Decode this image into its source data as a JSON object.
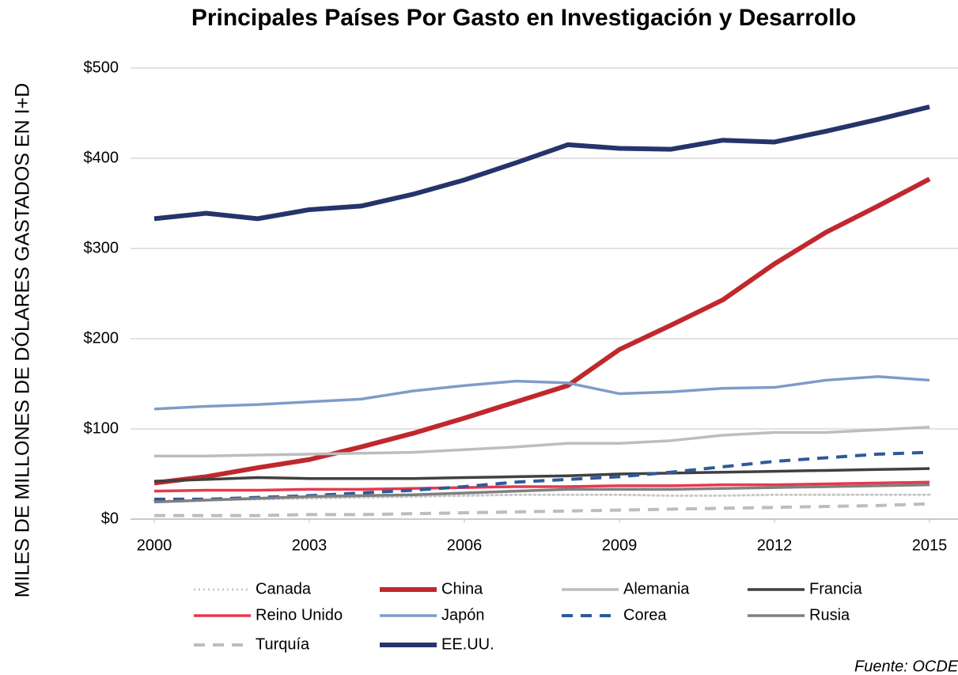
{
  "chart_data": {
    "type": "line",
    "title": "Principales Países Por Gasto en Investigación y Desarrollo",
    "y_label": "MILES DE MILLONES DE DÓLARES GASTADOS EN I+D",
    "source": "Fuente: OCDE",
    "x": [
      2000,
      2001,
      2002,
      2003,
      2004,
      2005,
      2006,
      2007,
      2008,
      2009,
      2010,
      2011,
      2012,
      2013,
      2014,
      2015
    ],
    "xlim": [
      2000,
      2015
    ],
    "xticks": [
      2000,
      2003,
      2006,
      2009,
      2012,
      2015
    ],
    "ylim": [
      0,
      500
    ],
    "yticks": [
      {
        "value": 0,
        "label": "$0"
      },
      {
        "value": 100,
        "label": "$100"
      },
      {
        "value": 200,
        "label": "$200"
      },
      {
        "value": 300,
        "label": "$300"
      },
      {
        "value": 400,
        "label": "$400"
      },
      {
        "value": 500,
        "label": "$500"
      }
    ],
    "grid": true,
    "legend": "bottom",
    "series": [
      {
        "name": "Canada",
        "color": "#c8c8c8",
        "style": "dotted",
        "values": [
          20,
          21,
          22,
          23,
          24,
          25,
          26,
          27,
          27,
          27,
          26,
          26,
          27,
          27,
          27,
          27
        ]
      },
      {
        "name": "China",
        "color": "#c0282d",
        "style": "solid-thick",
        "values": [
          40,
          47,
          57,
          66,
          80,
          95,
          112,
          130,
          148,
          188,
          215,
          243,
          283,
          318,
          347,
          377
        ]
      },
      {
        "name": "Alemania",
        "color": "#bdbdbd",
        "style": "solid",
        "values": [
          70,
          70,
          71,
          72,
          73,
          74,
          77,
          80,
          84,
          84,
          87,
          93,
          96,
          96,
          99,
          102
        ]
      },
      {
        "name": "Francia",
        "color": "#404040",
        "style": "solid",
        "values": [
          42,
          44,
          46,
          45,
          45,
          45,
          46,
          47,
          48,
          50,
          51,
          52,
          53,
          54,
          55,
          56
        ]
      },
      {
        "name": "Reino Unido",
        "color": "#e8384f",
        "style": "solid",
        "values": [
          31,
          32,
          32,
          33,
          33,
          34,
          35,
          36,
          36,
          37,
          37,
          38,
          38,
          39,
          40,
          41
        ]
      },
      {
        "name": "Japón",
        "color": "#7f9cc8",
        "style": "solid",
        "values": [
          122,
          125,
          127,
          130,
          133,
          142,
          148,
          153,
          151,
          139,
          141,
          145,
          146,
          154,
          158,
          154
        ]
      },
      {
        "name": "Corea",
        "color": "#2e5a9a",
        "style": "dashed",
        "values": [
          22,
          22,
          24,
          26,
          29,
          32,
          36,
          41,
          44,
          47,
          52,
          58,
          64,
          68,
          72,
          74
        ]
      },
      {
        "name": "Rusia",
        "color": "#7f7f7f",
        "style": "solid",
        "values": [
          19,
          21,
          23,
          25,
          26,
          27,
          29,
          31,
          33,
          33,
          33,
          34,
          35,
          36,
          37,
          38
        ]
      },
      {
        "name": "Turquía",
        "color": "#bdbdbd",
        "style": "dashed",
        "values": [
          4,
          4,
          4,
          5,
          5,
          6,
          7,
          8,
          9,
          10,
          11,
          12,
          13,
          14,
          15,
          17
        ]
      },
      {
        "name": "EE.UU.",
        "color": "#26346b",
        "style": "solid-thick",
        "values": [
          333,
          339,
          333,
          343,
          347,
          360,
          376,
          395,
          415,
          411,
          410,
          420,
          418,
          430,
          443,
          457
        ]
      }
    ]
  }
}
